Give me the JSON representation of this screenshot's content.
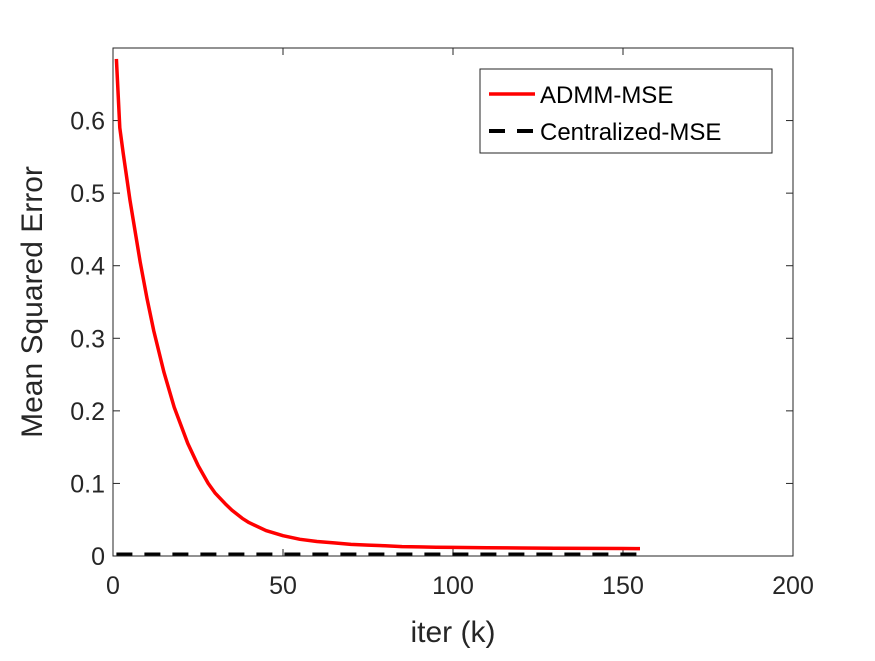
{
  "chart_data": {
    "type": "line",
    "title": "",
    "xlabel": "iter (k)",
    "ylabel": "Mean Squared Error",
    "xlim": [
      0,
      200
    ],
    "ylim": [
      0,
      0.7
    ],
    "x_ticks": [
      0,
      50,
      100,
      150,
      200
    ],
    "y_ticks": [
      0,
      0.1,
      0.2,
      0.3,
      0.4,
      0.5,
      0.6
    ],
    "x_tick_labels": [
      "0",
      "50",
      "100",
      "150",
      "200"
    ],
    "y_tick_labels": [
      "0",
      "0.1",
      "0.2",
      "0.3",
      "0.4",
      "0.5",
      "0.6"
    ],
    "grid": false,
    "box": true,
    "legend_position": "top-right",
    "series": [
      {
        "name": "ADMM-MSE",
        "color": "#ff0000",
        "line_style": "solid",
        "x": [
          1,
          2,
          3,
          5,
          8,
          10,
          12,
          15,
          18,
          20,
          22,
          25,
          28,
          30,
          33,
          35,
          38,
          40,
          45,
          50,
          55,
          60,
          65,
          70,
          75,
          80,
          85,
          90,
          95,
          100,
          110,
          120,
          130,
          140,
          150,
          155
        ],
        "y": [
          0.685,
          0.59,
          0.555,
          0.49,
          0.405,
          0.355,
          0.31,
          0.253,
          0.205,
          0.18,
          0.155,
          0.125,
          0.1,
          0.087,
          0.072,
          0.063,
          0.052,
          0.046,
          0.035,
          0.028,
          0.023,
          0.02,
          0.018,
          0.016,
          0.015,
          0.014,
          0.013,
          0.0125,
          0.012,
          0.0118,
          0.0113,
          0.011,
          0.0107,
          0.0105,
          0.0103,
          0.0102
        ]
      },
      {
        "name": "Centralized-MSE",
        "color": "#000000",
        "line_style": "dashed",
        "x": [
          1,
          155
        ],
        "y": [
          0.002,
          0.002
        ]
      }
    ]
  }
}
